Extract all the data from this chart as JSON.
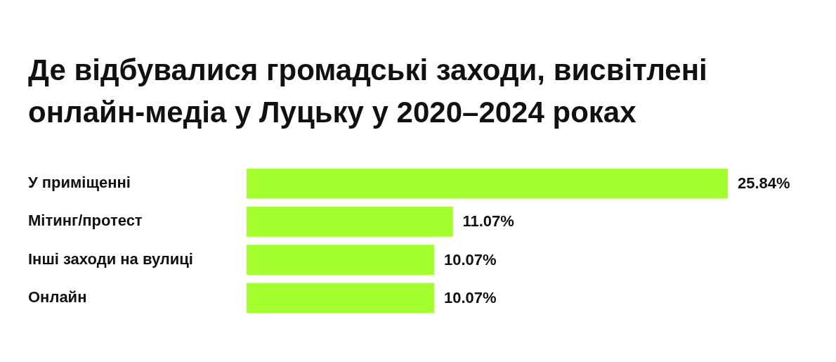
{
  "chart_data": {
    "type": "bar",
    "orientation": "horizontal",
    "title": "Де відбувалися громадські заходи, висвітлені онлайн-медіа у Луцьку у 2020–2024 роках",
    "categories": [
      "У приміщенні",
      "Мітинг/протест",
      "Інші заходи на вулиці",
      "Онлайн"
    ],
    "values": [
      25.84,
      11.07,
      10.07,
      10.07
    ],
    "value_labels": [
      "25.84%",
      "11.07%",
      "10.07%",
      "10.07%"
    ],
    "color": "#a3ff2e",
    "legend": false
  }
}
